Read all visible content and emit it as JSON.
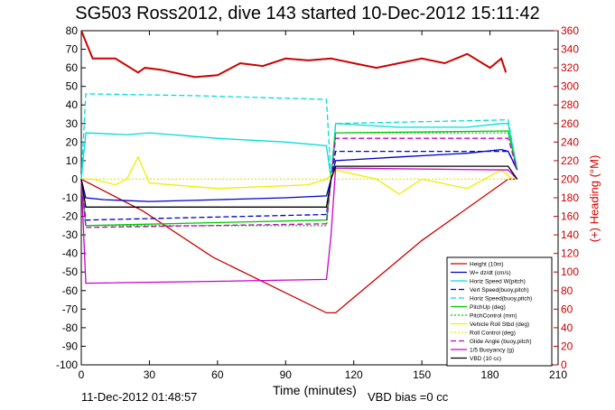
{
  "title": "SG503 Ross2012, dive 143 started 10-Dec-2012 15:11:42",
  "footer": {
    "timestamp": "11-Dec-2012 01:48:57",
    "vbd_bias": "VBD bias =0 cc"
  },
  "chart_data": {
    "type": "line",
    "xlabel": "Time (minutes)",
    "ylabel": "",
    "ylabel_right": "(+) Heading (°M)",
    "xlim": [
      0,
      210
    ],
    "ylim": [
      -100,
      80
    ],
    "ylim_right": [
      0,
      360
    ],
    "xticks": [
      "0",
      "30",
      "60",
      "90",
      "120",
      "150",
      "180",
      "210"
    ],
    "yticks": [
      "80",
      "70",
      "60",
      "50",
      "40",
      "30",
      "20",
      "10",
      "0",
      "-10",
      "-20",
      "-30",
      "-40",
      "-50",
      "-60",
      "-70",
      "-80",
      "-90",
      "-100"
    ],
    "yticks_right": [
      "360",
      "340",
      "320",
      "300",
      "280",
      "260",
      "240",
      "220",
      "200",
      "180",
      "160",
      "140",
      "120",
      "100",
      "80",
      "60",
      "40",
      "20",
      "0"
    ],
    "grid": false,
    "legend_position": "lower-right",
    "colors": {
      "height": "#cc0000",
      "w": "#0000cc",
      "horiz_speed": "#00dddd",
      "pitch": "#00cc00",
      "roll": "#eeee00",
      "buoyancy": "#cc00cc",
      "vbd": "#000000"
    },
    "series": [
      {
        "name": "Height (10m)",
        "color": "#cc0000",
        "x": [
          0,
          27,
          58,
          108,
          112,
          150,
          188,
          192
        ],
        "y": [
          0,
          -17,
          -42,
          -72,
          -72,
          -33,
          0,
          0
        ]
      },
      {
        "name": "W= dz/dt (cm/s)",
        "color": "#0000cc",
        "x": [
          0,
          2,
          10,
          30,
          60,
          90,
          108,
          110,
          112,
          140,
          170,
          185,
          188,
          192
        ],
        "y": [
          0,
          -10,
          -11,
          -12,
          -11,
          -10,
          -9,
          0,
          10,
          12,
          14,
          16,
          15,
          5
        ]
      },
      {
        "name": "Horiz Speed W(pitch)",
        "color": "#00dddd",
        "x": [
          0,
          2,
          20,
          30,
          60,
          90,
          108,
          110,
          112,
          140,
          170,
          185,
          188,
          192
        ],
        "y": [
          0,
          25,
          24,
          25,
          22,
          20,
          18,
          0,
          30,
          28,
          28,
          30,
          30,
          5
        ]
      },
      {
        "name": "Vert Speed(buoy,pitch)",
        "color": "#0000cc",
        "dash": "6,3",
        "x": [
          0,
          2,
          108,
          110,
          112,
          188,
          192
        ],
        "y": [
          0,
          -22,
          -19,
          0,
          15,
          15,
          5
        ]
      },
      {
        "name": "Horiz Speed(buoy,pitch)",
        "color": "#00dddd",
        "dash": "6,3",
        "x": [
          0,
          2,
          50,
          108,
          110,
          112,
          188,
          192
        ],
        "y": [
          0,
          46,
          45,
          43,
          0,
          30,
          32,
          5
        ]
      },
      {
        "name": "PitchUp (deg)",
        "color": "#00cc00",
        "x": [
          0,
          2,
          108,
          110,
          112,
          188,
          192
        ],
        "y": [
          0,
          -25,
          -22,
          0,
          25,
          26,
          5
        ]
      },
      {
        "name": "PitchControl (mm)",
        "color": "#00cc00",
        "dash": "2,2",
        "x": [
          0,
          2,
          108,
          110,
          112,
          188,
          192
        ],
        "y": [
          0,
          -25,
          -25,
          0,
          25,
          25,
          5
        ]
      },
      {
        "name": "Vehicle Roll Stbd (deg)",
        "color": "#eeee00",
        "x": [
          0,
          5,
          15,
          20,
          25,
          30,
          60,
          100,
          108,
          112,
          130,
          140,
          150,
          170,
          185,
          190
        ],
        "y": [
          0,
          0,
          -3,
          0,
          12,
          -2,
          -5,
          -3,
          0,
          5,
          0,
          -8,
          0,
          -5,
          5,
          0
        ]
      },
      {
        "name": "Roll Control (deg)",
        "color": "#eeee00",
        "dash": "2,2",
        "x": [
          0,
          192
        ],
        "y": [
          0,
          0
        ]
      },
      {
        "name": "Glide Angle (buoy,pitch)",
        "color": "#cc00cc",
        "dash": "6,3",
        "x": [
          0,
          2,
          108,
          110,
          112,
          188,
          192
        ],
        "y": [
          0,
          -26,
          -24,
          0,
          22,
          22,
          5
        ]
      },
      {
        "name": "1/5 Buoyancy (g)",
        "color": "#cc00cc",
        "x": [
          0,
          2,
          60,
          108,
          110,
          112,
          188,
          192
        ],
        "y": [
          0,
          -56,
          -55,
          -54,
          -30,
          6,
          5,
          0
        ]
      },
      {
        "name": "VBD (10 cc)",
        "color": "#000000",
        "x": [
          0,
          2,
          108,
          110,
          112,
          188,
          192
        ],
        "y": [
          0,
          -15,
          -15,
          0,
          7,
          7,
          0
        ]
      },
      {
        "name": "Heading",
        "axis": "right",
        "color": "#cc0000",
        "x": [
          0,
          5,
          15,
          25,
          28,
          35,
          50,
          60,
          70,
          80,
          90,
          100,
          110,
          120,
          130,
          150,
          160,
          170,
          180,
          185,
          187
        ],
        "y": [
          360,
          330,
          330,
          315,
          320,
          318,
          310,
          312,
          325,
          322,
          330,
          328,
          330,
          325,
          320,
          330,
          325,
          335,
          320,
          330,
          315
        ]
      }
    ]
  }
}
